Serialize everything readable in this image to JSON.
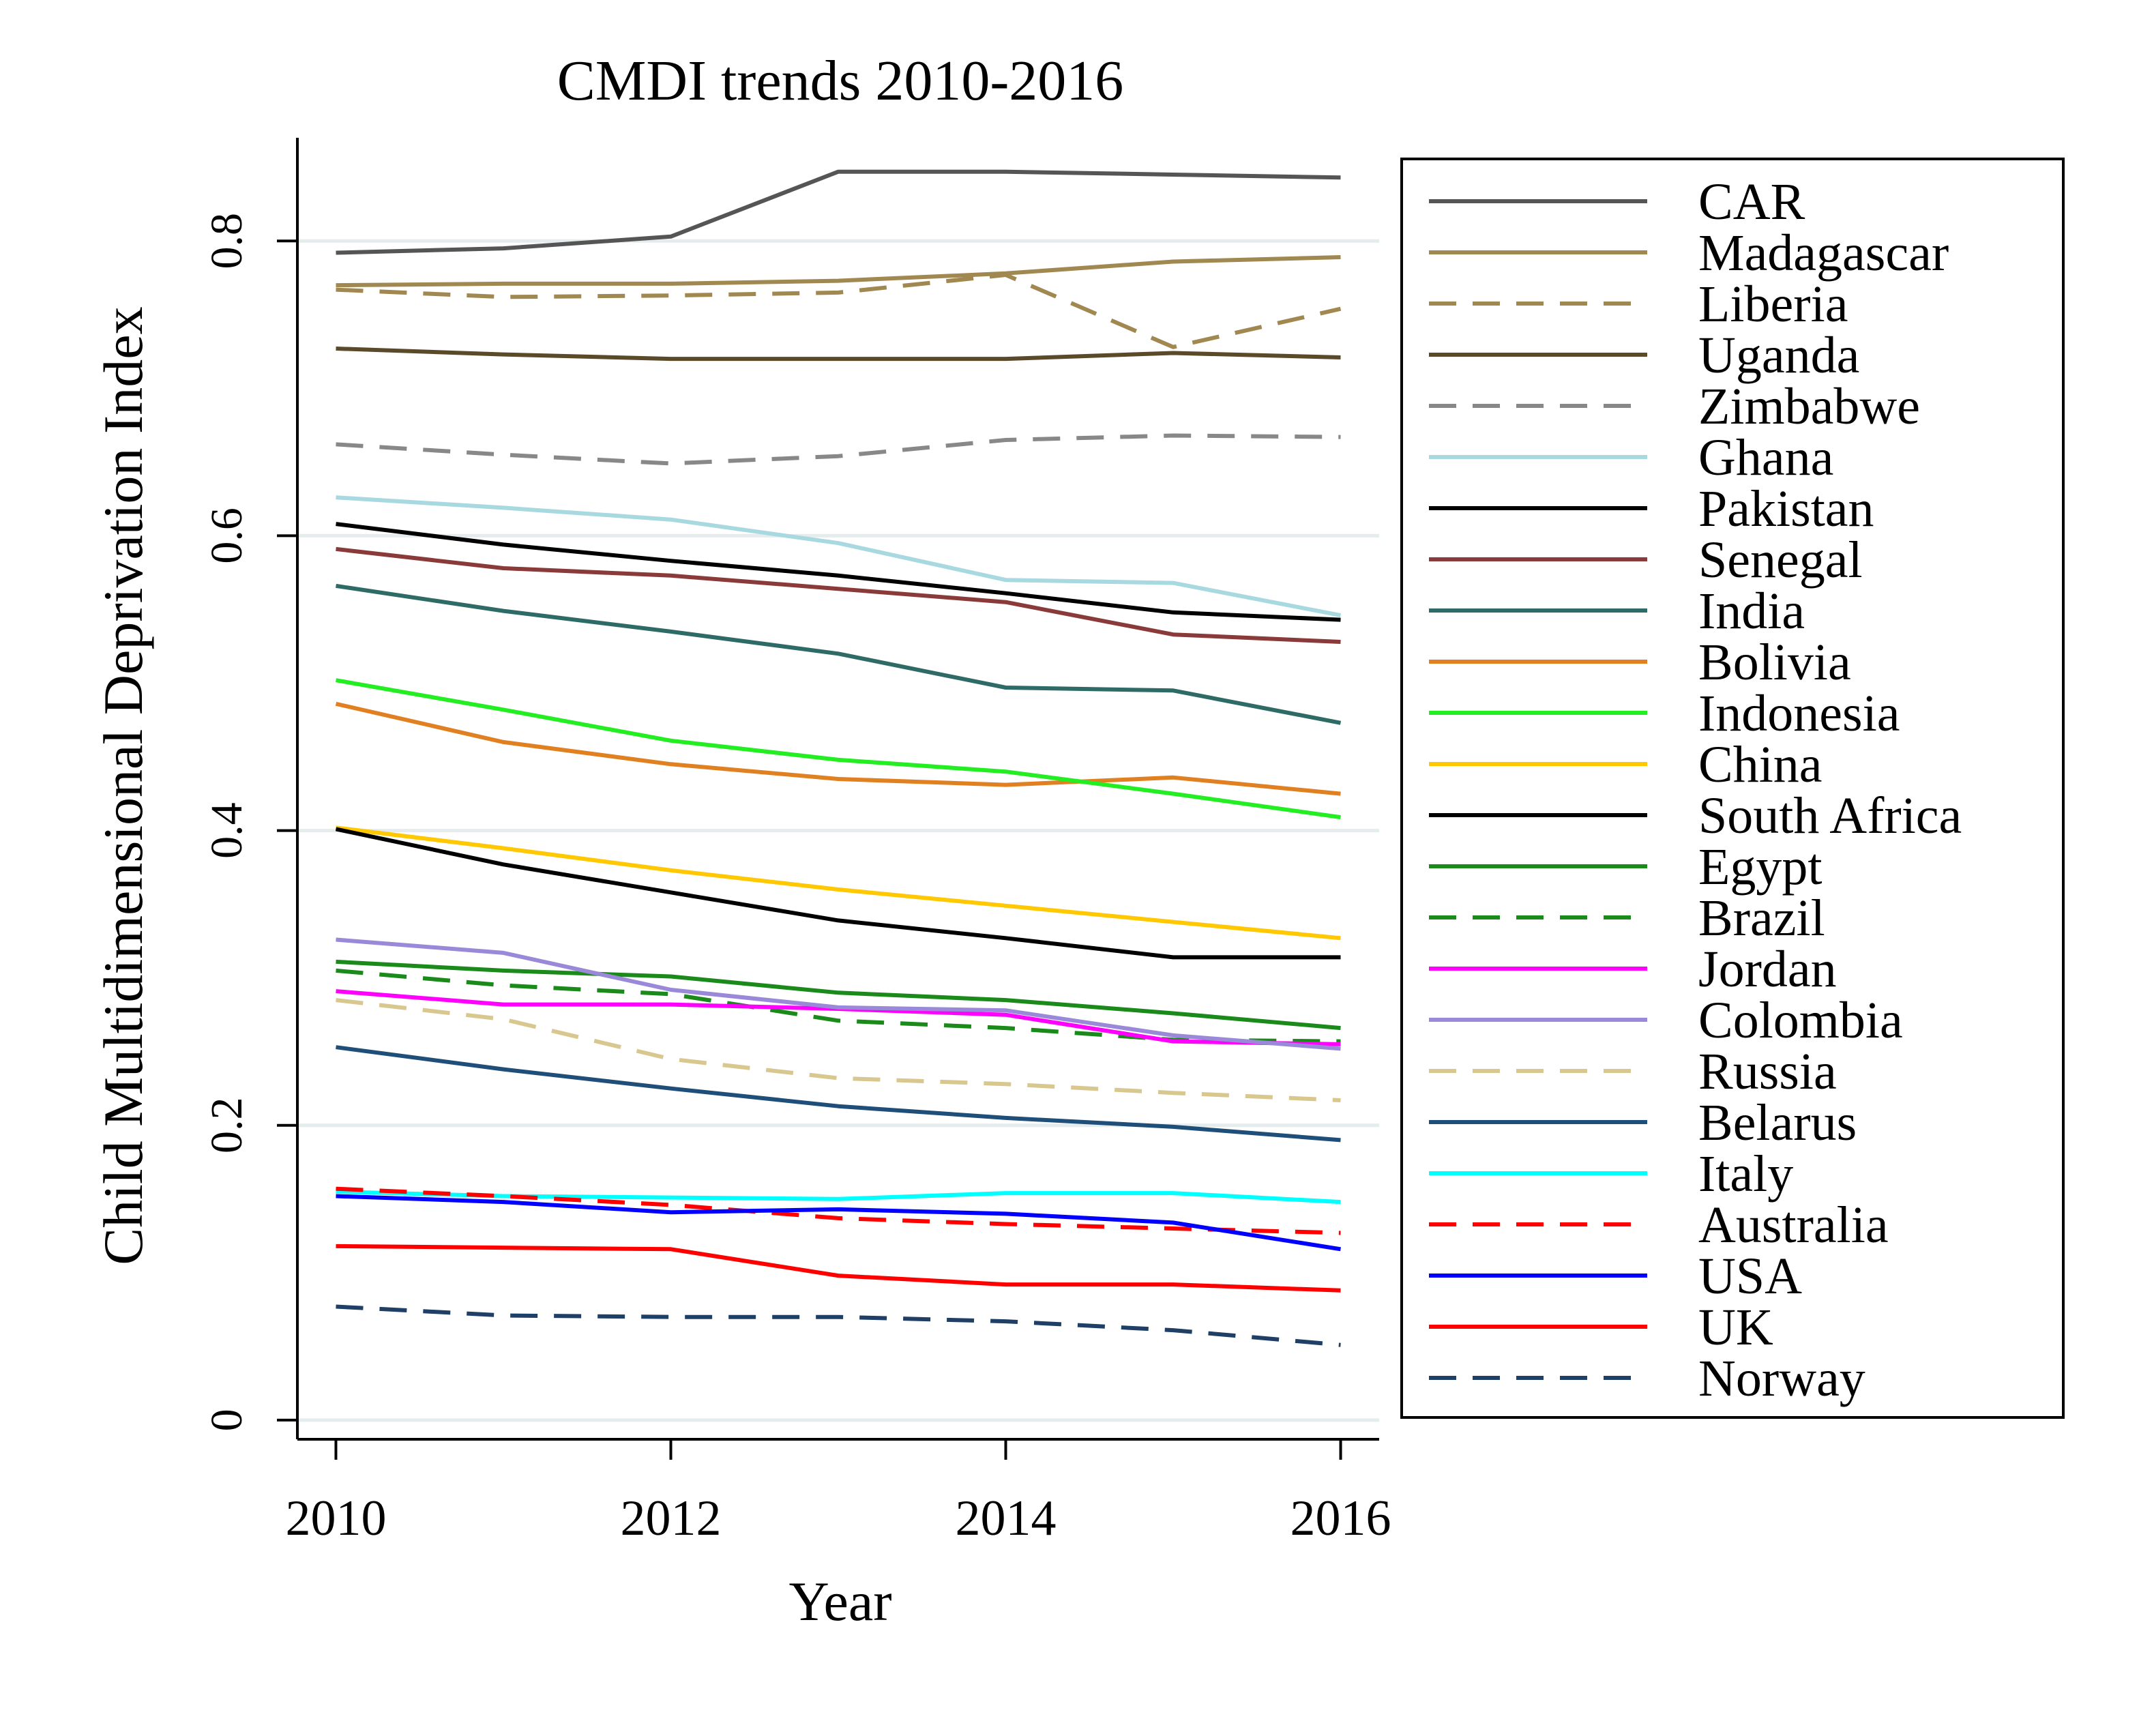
{
  "chart_data": {
    "type": "line",
    "title": "CMDI trends 2010-2016",
    "xlabel": "Year",
    "ylabel": "Child Multidimensional Deprivation Index",
    "xlim": [
      2009.77,
      2016.23
    ],
    "ylim": [
      -0.013,
      0.87
    ],
    "xticks": [
      2010,
      2012,
      2014,
      2016
    ],
    "yticks": [
      0,
      0.2,
      0.4,
      0.6,
      0.8
    ],
    "ytick_labels": [
      "0",
      "0.2",
      "0.4",
      "0.6",
      "0.8"
    ],
    "grid": "horizontal",
    "legend_position": "right",
    "x": [
      2010,
      2011,
      2012,
      2013,
      2014,
      2015,
      2016
    ],
    "series": [
      {
        "name": "CAR",
        "color": "#555555",
        "dash": "solid",
        "values": [
          0.792,
          0.795,
          0.803,
          0.847,
          0.847,
          0.845,
          0.843
        ]
      },
      {
        "name": "Madagascar",
        "color": "#a08850",
        "dash": "solid",
        "values": [
          0.77,
          0.771,
          0.771,
          0.773,
          0.778,
          0.786,
          0.789
        ]
      },
      {
        "name": "Liberia",
        "color": "#a08850",
        "dash": "dashed",
        "values": [
          0.767,
          0.762,
          0.763,
          0.765,
          0.777,
          0.728,
          0.754
        ]
      },
      {
        "name": "Uganda",
        "color": "#5a4a2a",
        "dash": "solid",
        "values": [
          0.727,
          0.723,
          0.72,
          0.72,
          0.72,
          0.724,
          0.721
        ]
      },
      {
        "name": "Zimbabwe",
        "color": "#888888",
        "dash": "dashed",
        "values": [
          0.662,
          0.655,
          0.649,
          0.654,
          0.665,
          0.668,
          0.667
        ]
      },
      {
        "name": "Ghana",
        "color": "#a8d8e0",
        "dash": "solid",
        "values": [
          0.626,
          0.619,
          0.611,
          0.595,
          0.57,
          0.568,
          0.546
        ]
      },
      {
        "name": "Pakistan",
        "color": "#000000",
        "dash": "solid",
        "values": [
          0.608,
          0.594,
          0.583,
          0.573,
          0.561,
          0.548,
          0.543
        ]
      },
      {
        "name": "Senegal",
        "color": "#8b3a3a",
        "dash": "solid",
        "values": [
          0.591,
          0.578,
          0.573,
          0.564,
          0.555,
          0.533,
          0.528
        ]
      },
      {
        "name": "India",
        "color": "#2f6b66",
        "dash": "solid",
        "values": [
          0.566,
          0.549,
          0.535,
          0.52,
          0.497,
          0.495,
          0.473
        ]
      },
      {
        "name": "Bolivia",
        "color": "#e08020",
        "dash": "solid",
        "values": [
          0.486,
          0.46,
          0.445,
          0.435,
          0.431,
          0.436,
          0.425
        ]
      },
      {
        "name": "Indonesia",
        "color": "#22ee22",
        "dash": "solid",
        "values": [
          0.502,
          0.482,
          0.461,
          0.448,
          0.44,
          0.425,
          0.409
        ]
      },
      {
        "name": "China",
        "color": "#ffc800",
        "dash": "solid",
        "values": [
          0.402,
          0.388,
          0.373,
          0.36,
          0.349,
          0.338,
          0.327
        ]
      },
      {
        "name": "South Africa",
        "color": "#000000",
        "dash": "solid",
        "values": [
          0.401,
          0.377,
          0.358,
          0.339,
          0.327,
          0.314,
          0.314
        ]
      },
      {
        "name": "Egypt",
        "color": "#1a8a1a",
        "dash": "solid",
        "values": [
          0.311,
          0.305,
          0.301,
          0.29,
          0.285,
          0.276,
          0.266
        ]
      },
      {
        "name": "Brazil",
        "color": "#1a8a1a",
        "dash": "dashed",
        "values": [
          0.305,
          0.295,
          0.289,
          0.271,
          0.266,
          0.258,
          0.257
        ]
      },
      {
        "name": "Jordan",
        "color": "#ff00ff",
        "dash": "solid",
        "values": [
          0.291,
          0.282,
          0.282,
          0.279,
          0.275,
          0.257,
          0.255
        ]
      },
      {
        "name": "Colombia",
        "color": "#9a88d8",
        "dash": "solid",
        "values": [
          0.326,
          0.317,
          0.292,
          0.28,
          0.278,
          0.261,
          0.252
        ]
      },
      {
        "name": "Russia",
        "color": "#d8c890",
        "dash": "dashed",
        "values": [
          0.285,
          0.272,
          0.245,
          0.232,
          0.228,
          0.222,
          0.217
        ]
      },
      {
        "name": "Belarus",
        "color": "#1f4e79",
        "dash": "solid",
        "values": [
          0.253,
          0.238,
          0.225,
          0.213,
          0.205,
          0.199,
          0.19
        ]
      },
      {
        "name": "Italy",
        "color": "#00ffff",
        "dash": "solid",
        "values": [
          0.155,
          0.152,
          0.151,
          0.15,
          0.154,
          0.154,
          0.148
        ]
      },
      {
        "name": "Australia",
        "color": "#ff0000",
        "dash": "dashed",
        "values": [
          0.157,
          0.152,
          0.146,
          0.137,
          0.133,
          0.13,
          0.127
        ]
      },
      {
        "name": "USA",
        "color": "#0000ff",
        "dash": "solid",
        "values": [
          0.152,
          0.148,
          0.141,
          0.143,
          0.14,
          0.134,
          0.116
        ]
      },
      {
        "name": "UK",
        "color": "#ff0000",
        "dash": "solid",
        "values": [
          0.118,
          0.117,
          0.116,
          0.098,
          0.092,
          0.092,
          0.088
        ]
      },
      {
        "name": "Norway",
        "color": "#1f3f66",
        "dash": "dashed",
        "values": [
          0.077,
          0.071,
          0.07,
          0.07,
          0.067,
          0.061,
          0.051
        ]
      }
    ]
  }
}
